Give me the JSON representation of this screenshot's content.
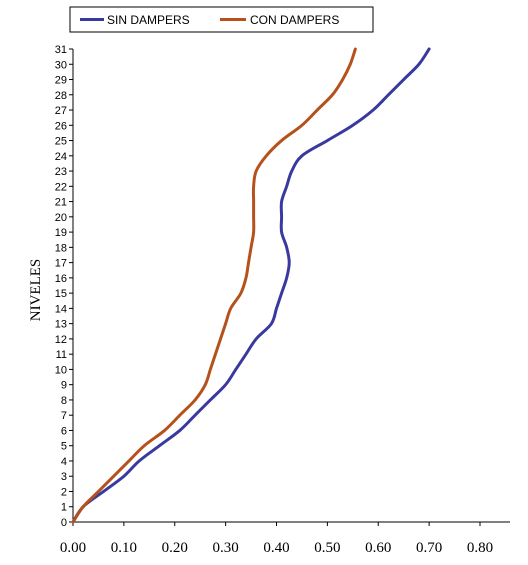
{
  "chart_data": {
    "type": "line",
    "title": "",
    "xlabel": "",
    "ylabel": "NIVELES",
    "xlim": [
      0,
      0.8
    ],
    "ylim": [
      0,
      31
    ],
    "x_ticks": [
      "0.00",
      "0.10",
      "0.20",
      "0.30",
      "0.40",
      "0.50",
      "0.60",
      "0.70",
      "0.80"
    ],
    "y_ticks": [
      "0",
      "1",
      "2",
      "3",
      "4",
      "5",
      "6",
      "7",
      "8",
      "9",
      "10",
      "11",
      "12",
      "13",
      "14",
      "15",
      "16",
      "17",
      "18",
      "19",
      "20",
      "21",
      "22",
      "23",
      "24",
      "25",
      "26",
      "27",
      "28",
      "29",
      "30",
      "31"
    ],
    "grid": false,
    "legend_position": "top",
    "series": [
      {
        "name": "SIN DAMPERS",
        "color": "#3a3a9e",
        "x": [
          0.0,
          0.02,
          0.06,
          0.1,
          0.13,
          0.17,
          0.21,
          0.24,
          0.27,
          0.3,
          0.32,
          0.34,
          0.36,
          0.39,
          0.4,
          0.41,
          0.42,
          0.425,
          0.42,
          0.41,
          0.41,
          0.41,
          0.42,
          0.43,
          0.45,
          0.5,
          0.55,
          0.59,
          0.62,
          0.65,
          0.68,
          0.7
        ],
        "y": [
          0,
          1,
          2,
          3,
          4,
          5,
          6,
          7,
          8,
          9,
          10,
          11,
          12,
          13,
          14,
          15,
          16,
          17,
          18,
          19,
          20,
          21,
          22,
          23,
          24,
          25,
          26,
          27,
          28,
          29,
          30,
          31
        ]
      },
      {
        "name": "CON DAMPERS",
        "color": "#b5521b",
        "x": [
          0.0,
          0.02,
          0.05,
          0.08,
          0.11,
          0.14,
          0.18,
          0.21,
          0.24,
          0.26,
          0.27,
          0.28,
          0.29,
          0.3,
          0.31,
          0.33,
          0.34,
          0.345,
          0.35,
          0.355,
          0.355,
          0.355,
          0.355,
          0.36,
          0.38,
          0.41,
          0.45,
          0.48,
          0.51,
          0.53,
          0.545,
          0.555
        ],
        "y": [
          0,
          1,
          2,
          3,
          4,
          5,
          6,
          7,
          8,
          9,
          10,
          11,
          12,
          13,
          14,
          15,
          16,
          17,
          18,
          19,
          20,
          21,
          22,
          23,
          24,
          25,
          26,
          27,
          28,
          29,
          30,
          31
        ]
      }
    ]
  }
}
